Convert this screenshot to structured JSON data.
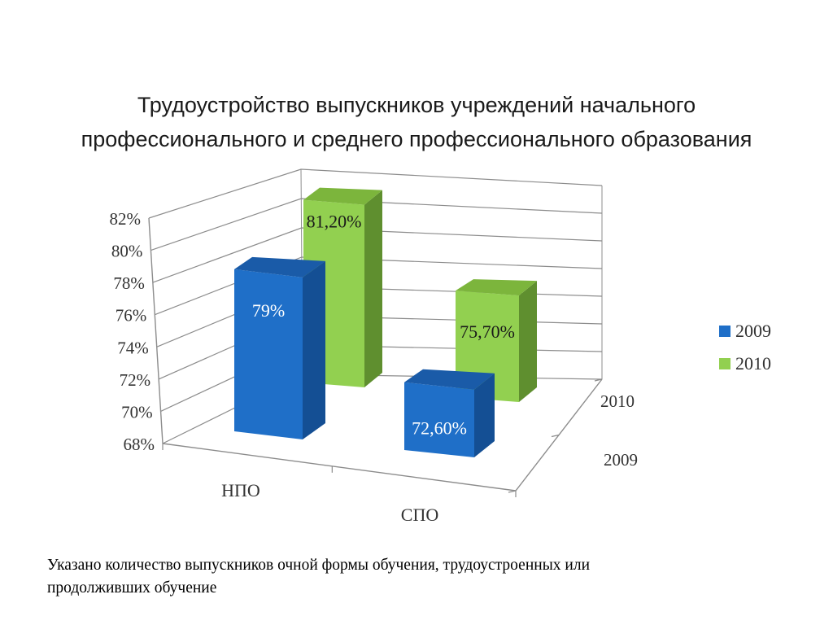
{
  "title": {
    "line1": "Трудоустройство выпускников учреждений начального",
    "line2": "профессионального и среднего профессионального образования"
  },
  "footnote": {
    "line1": "Указано количество выпускников очной формы обучения, трудоустроенных или",
    "line2": "продолживших обучение"
  },
  "chart_data": {
    "type": "bar",
    "style": "3d-clustered-depth",
    "categories": [
      "НПО",
      "СПО"
    ],
    "depth_categories": [
      "2009",
      "2010"
    ],
    "series": [
      {
        "name": "2009",
        "values": [
          79,
          72.6
        ],
        "labels": [
          "79%",
          "72,60%"
        ],
        "color": "#1f6fc8"
      },
      {
        "name": "2010",
        "values": [
          81.2,
          75.7
        ],
        "labels": [
          "81,20%",
          "75,70%"
        ],
        "color": "#8fd14f"
      }
    ],
    "y_ticks": [
      {
        "value": 68,
        "label": "68%"
      },
      {
        "value": 70,
        "label": "70%"
      },
      {
        "value": 72,
        "label": "72%"
      },
      {
        "value": 74,
        "label": "74%"
      },
      {
        "value": 76,
        "label": "76%"
      },
      {
        "value": 78,
        "label": "78%"
      },
      {
        "value": 80,
        "label": "80%"
      },
      {
        "value": 82,
        "label": "82%"
      }
    ],
    "ylim": [
      68,
      82
    ],
    "grid": true,
    "legend": "right",
    "colors": {
      "blue_front": "#1f6fc8",
      "blue_side": "#144f94",
      "blue_top": "#1a5ba8",
      "green_front": "#92d050",
      "green_side": "#5f8f2f",
      "green_top": "#7cb53c",
      "grid": "#8c8c8c"
    }
  }
}
